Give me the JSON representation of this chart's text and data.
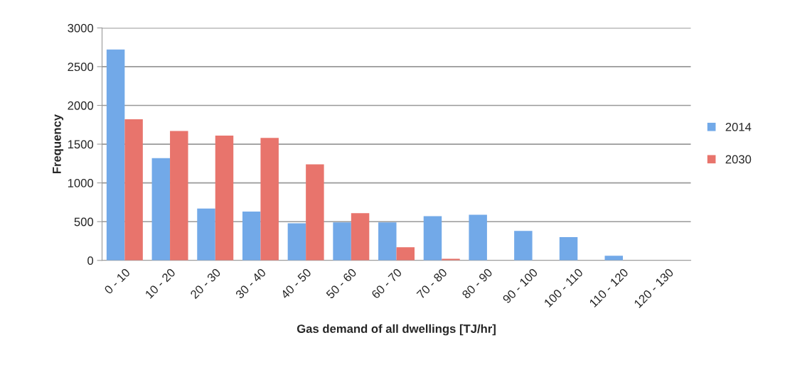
{
  "chart_data": {
    "type": "bar",
    "xlabel": "Gas demand of all dwellings [TJ/hr]",
    "ylabel": "Frequency",
    "categories": [
      "0 - 10",
      "10 - 20",
      "20 - 30",
      "30 - 40",
      "40 - 50",
      "50 - 60",
      "60 - 70",
      "70 - 80",
      "80 - 90",
      "90 - 100",
      "100 - 110",
      "110 - 120",
      "120 - 130"
    ],
    "series": [
      {
        "name": "2014",
        "color": "#72a9e8",
        "values": [
          2720,
          1320,
          670,
          630,
          480,
          490,
          490,
          570,
          590,
          380,
          300,
          60,
          null
        ]
      },
      {
        "name": "2030",
        "color": "#e8746c",
        "values": [
          1820,
          1670,
          1610,
          1580,
          1240,
          610,
          170,
          20,
          null,
          0,
          0,
          0,
          0
        ]
      }
    ],
    "ylim": [
      0,
      3000
    ],
    "yticks": [
      0,
      500,
      1000,
      1500,
      2000,
      2500,
      3000
    ],
    "grid": "y",
    "legend": "right"
  }
}
